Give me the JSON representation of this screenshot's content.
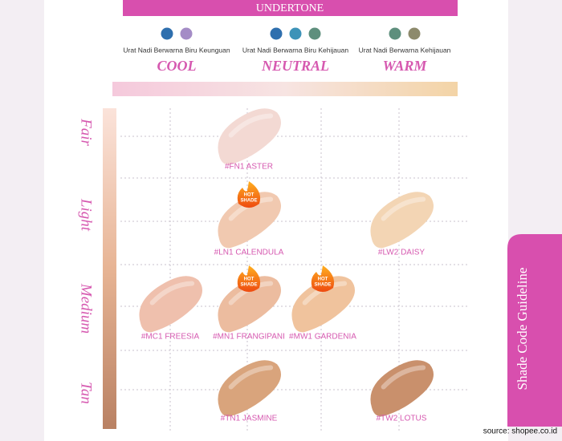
{
  "header": {
    "title": "UNDERTONE"
  },
  "undertones": [
    {
      "description": "Urat Nadi Berwarna Biru Keunguan",
      "label": "COOL",
      "dots": [
        "#2e6fae",
        "#a48cc6"
      ]
    },
    {
      "description": "Urat Nadi Berwarna Biru Kehijauan",
      "label": "NEUTRAL",
      "dots": [
        "#2e6fae",
        "#3d93b8",
        "#5e8f7d"
      ]
    },
    {
      "description": "Urat Nadi Berwarna Kehijauan",
      "label": "WARM",
      "dots": [
        "#5e8f7d",
        "#8d8a6c"
      ]
    }
  ],
  "rows": [
    "Fair",
    "Light",
    "Medium",
    "Tan"
  ],
  "shades": [
    {
      "code": "#FN1 ASTER",
      "row": 0,
      "col": 1,
      "color": "#f3d9d3"
    },
    {
      "code": "#LN1 CALENDULA",
      "row": 1,
      "col": 1,
      "color": "#f1c9b0",
      "badge": [
        "HOT",
        "SHADE"
      ]
    },
    {
      "code": "#LW2 DAISY",
      "row": 1,
      "col": 3,
      "color": "#f3d5b4"
    },
    {
      "code": "#MC1 FREESIA",
      "row": 2,
      "col": 0,
      "color": "#efc0ad"
    },
    {
      "code": "#MN1 FRANGIPANI",
      "row": 2,
      "col": 1,
      "color": "#ecbc9f",
      "badge": [
        "HOT",
        "SHADE"
      ]
    },
    {
      "code": "#MW1 GARDENIA",
      "row": 2,
      "col": 2,
      "color": "#f0c39d",
      "badge": [
        "HOT",
        "SHADE"
      ]
    },
    {
      "code": "#TN1 JASMINE",
      "row": 3,
      "col": 1,
      "color": "#d9a47c"
    },
    {
      "code": "#TW2 LOTUS",
      "row": 3,
      "col": 3,
      "color": "#c9906c"
    }
  ],
  "side_label": "Shade Code Guideline",
  "source": "source: shopee.co.id"
}
